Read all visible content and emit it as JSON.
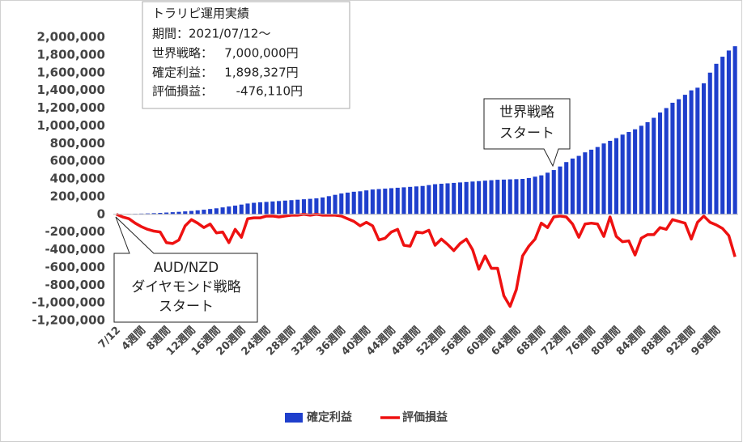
{
  "chart_data": {
    "type": "bar-line",
    "categories": [
      "7/12",
      null,
      null,
      null,
      "4週間",
      null,
      null,
      null,
      "8週間",
      null,
      null,
      null,
      "12週間",
      null,
      null,
      null,
      "16週間",
      null,
      null,
      null,
      "20週間",
      null,
      null,
      null,
      "24週間",
      null,
      null,
      null,
      "28週間",
      null,
      null,
      null,
      "32週間",
      null,
      null,
      null,
      "36週間",
      null,
      null,
      null,
      "40週間",
      null,
      null,
      null,
      "44週間",
      null,
      null,
      null,
      "48週間",
      null,
      null,
      null,
      "52週間",
      null,
      null,
      null,
      "56週間",
      null,
      null,
      null,
      "60週間",
      null,
      null,
      null,
      "64週間",
      null,
      null,
      null,
      "68週間",
      null,
      null,
      null,
      "72週間",
      null,
      null,
      null,
      "76週間",
      null,
      null,
      null,
      "80週間",
      null,
      null,
      null,
      "84週間",
      null,
      null,
      null,
      "88週間",
      null,
      null,
      null,
      "92週間",
      null,
      null,
      null,
      "96週間",
      null,
      null,
      null
    ],
    "series": [
      {
        "name": "確定利益",
        "type": "bar",
        "color": "#1f3fcc",
        "values": [
          0,
          2000,
          4000,
          6000,
          8000,
          10000,
          13000,
          16000,
          20000,
          24000,
          28000,
          33000,
          38000,
          45000,
          52000,
          60000,
          68000,
          78000,
          88000,
          98000,
          110000,
          122000,
          130000,
          136000,
          140000,
          145000,
          150000,
          155000,
          160000,
          165000,
          170000,
          175000,
          180000,
          190000,
          205000,
          220000,
          235000,
          245000,
          255000,
          260000,
          270000,
          280000,
          285000,
          290000,
          295000,
          300000,
          305000,
          310000,
          315000,
          320000,
          330000,
          340000,
          345000,
          350000,
          355000,
          360000,
          365000,
          370000,
          375000,
          380000,
          385000,
          390000,
          392000,
          395000,
          397000,
          400000,
          410000,
          425000,
          440000,
          470000,
          500000,
          540000,
          590000,
          630000,
          660000,
          700000,
          730000,
          760000,
          800000,
          830000,
          860000,
          900000,
          930000,
          960000,
          1000000,
          1040000,
          1090000,
          1150000,
          1200000,
          1260000,
          1300000,
          1350000,
          1400000,
          1430000,
          1480000,
          1600000,
          1700000,
          1780000,
          1850000,
          1898327
        ]
      },
      {
        "name": "評価損益",
        "type": "line",
        "color": "#ee1111",
        "values": [
          0,
          -30000,
          -50000,
          -100000,
          -140000,
          -170000,
          -190000,
          -200000,
          -320000,
          -330000,
          -290000,
          -130000,
          -60000,
          -100000,
          -150000,
          -110000,
          -210000,
          -200000,
          -320000,
          -170000,
          -260000,
          -50000,
          -40000,
          -40000,
          -20000,
          -20000,
          -30000,
          -20000,
          -10000,
          -10000,
          0,
          -10000,
          0,
          -10000,
          -10000,
          -10000,
          -20000,
          -50000,
          -80000,
          -130000,
          -90000,
          -130000,
          -290000,
          -270000,
          -200000,
          -170000,
          -350000,
          -360000,
          -200000,
          -210000,
          -180000,
          -350000,
          -280000,
          -340000,
          -410000,
          -330000,
          -280000,
          -400000,
          -620000,
          -470000,
          -610000,
          -610000,
          -920000,
          -1040000,
          -850000,
          -470000,
          -360000,
          -280000,
          -100000,
          -150000,
          -30000,
          -20000,
          -30000,
          -110000,
          -260000,
          -110000,
          -100000,
          -110000,
          -250000,
          -30000,
          -250000,
          -310000,
          -300000,
          -460000,
          -270000,
          -230000,
          -230000,
          -150000,
          -170000,
          -60000,
          -80000,
          -100000,
          -280000,
          -90000,
          -20000,
          -90000,
          -120000,
          -160000,
          -240000,
          -480000
        ]
      }
    ],
    "ylim": [
      -1200000,
      2000000
    ],
    "yticks": [
      {
        "value": -1200000,
        "label": "-1,200,000"
      },
      {
        "value": -1000000,
        "label": "-1,000,000"
      },
      {
        "value": -800000,
        "label": "-800,000"
      },
      {
        "value": -600000,
        "label": "-600,000"
      },
      {
        "value": -400000,
        "label": "-400,000"
      },
      {
        "value": -200000,
        "label": "-200,000"
      },
      0,
      {
        "value": 200000,
        "label": "200,000"
      },
      {
        "value": 400000,
        "label": "400,000"
      },
      {
        "value": 600000,
        "label": "600,000"
      },
      {
        "value": 800000,
        "label": "800,000"
      },
      {
        "value": 1000000,
        "label": "1,000,000"
      },
      {
        "value": 1200000,
        "label": "1,200,000"
      },
      {
        "value": 1400000,
        "label": "1,400,000"
      },
      {
        "value": 1600000,
        "label": "1,600,000"
      },
      {
        "value": 1800000,
        "label": "1,800,000"
      },
      {
        "value": 2000000,
        "label": "2,000,000"
      }
    ],
    "grid": false,
    "legend": "bottom",
    "annotations": [
      {
        "lines": [
          "トラリピ運用実績",
          "期間：2021/07/12～",
          "世界戦略：   7,000,000円",
          "確定利益：   1,898,327円",
          "評価損益：      -476,110円"
        ]
      },
      {
        "lines": [
          "世界戦略",
          "スタート"
        ]
      },
      {
        "lines": [
          "AUD/NZD",
          "ダイヤモンド戦略",
          "スタート"
        ]
      }
    ]
  }
}
